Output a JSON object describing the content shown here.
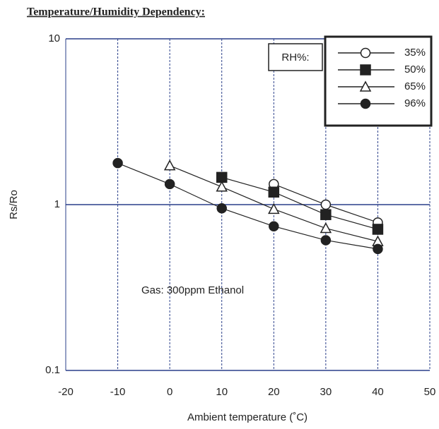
{
  "chart_data": {
    "type": "line",
    "title": "Temperature/Humidity Dependency:",
    "x_label": "Ambient temperature (˚C)",
    "y_label": "Rs/Ro",
    "annotation": "Gas: 300ppm Ethanol",
    "legend_title": "RH%:",
    "x": [
      -10,
      0,
      10,
      20,
      30,
      40
    ],
    "series": [
      {
        "name": "35%",
        "color": "#222222",
        "marker": "circle-open",
        "values": [
          null,
          null,
          null,
          1.33,
          1.0,
          0.78
        ]
      },
      {
        "name": "50%",
        "color": "#222222",
        "marker": "square",
        "values": [
          null,
          null,
          1.46,
          1.19,
          0.87,
          0.71
        ]
      },
      {
        "name": "65%",
        "color": "#222222",
        "marker": "triangle-open",
        "values": [
          null,
          1.72,
          1.28,
          0.94,
          0.72,
          0.6
        ]
      },
      {
        "name": "96%",
        "color": "#222222",
        "marker": "circle",
        "values": [
          1.78,
          1.33,
          0.95,
          0.74,
          0.61,
          0.54
        ]
      }
    ],
    "xlim": [
      -20,
      50
    ],
    "xticks": [
      -20,
      -10,
      0,
      10,
      20,
      30,
      40,
      50
    ],
    "ylim": [
      0.1,
      10
    ],
    "yticks": [
      0.1,
      1,
      10
    ],
    "log_y": true,
    "grid": true,
    "legend_position": "upper right"
  }
}
